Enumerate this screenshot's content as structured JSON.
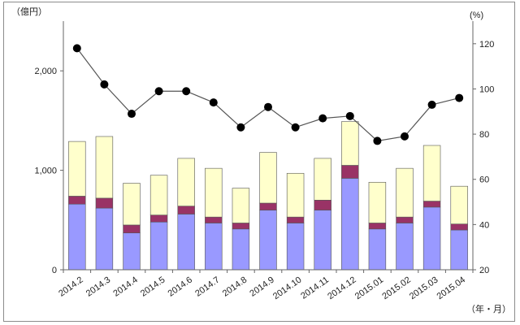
{
  "chart_data": {
    "type": "bar",
    "stacked": true,
    "has_line_series": true,
    "left_axis_unit": "（億円）",
    "right_axis_unit": "(%)",
    "x_axis_unit": "（年・月）",
    "left_ylim": [
      0,
      2500
    ],
    "left_ticks": [
      0,
      1000,
      2000
    ],
    "left_tick_labels": [
      "0",
      "1,000",
      "2,000"
    ],
    "right_ylim": [
      20,
      130
    ],
    "right_ticks": [
      20,
      40,
      60,
      80,
      100,
      120
    ],
    "right_tick_labels": [
      "20",
      "40",
      "60",
      "80",
      "100",
      "120"
    ],
    "grid": false,
    "legend": "none",
    "categories": [
      "2014.2",
      "2014.3",
      "2014.4",
      "2014.5",
      "2014.6",
      "2014.7",
      "2014.8",
      "2014.9",
      "2014.10",
      "2014.11",
      "2014.12",
      "2015.01",
      "2015.02",
      "2015.03",
      "2015.04"
    ],
    "series": [
      {
        "kind": "bar",
        "color": "#9999ff",
        "values": [
          660,
          620,
          370,
          480,
          560,
          470,
          410,
          600,
          470,
          600,
          920,
          410,
          470,
          630,
          400
        ]
      },
      {
        "kind": "bar",
        "color": "#993366",
        "values": [
          80,
          100,
          80,
          70,
          80,
          60,
          60,
          70,
          60,
          100,
          130,
          60,
          60,
          60,
          60
        ]
      },
      {
        "kind": "bar",
        "color": "#ffffcc",
        "values": [
          550,
          620,
          420,
          400,
          480,
          490,
          350,
          510,
          440,
          420,
          440,
          410,
          490,
          560,
          380
        ]
      },
      {
        "kind": "line",
        "axis": "right",
        "color": "#000000",
        "values": [
          118,
          102,
          89,
          99,
          99,
          94,
          83,
          92,
          83,
          87,
          88,
          77,
          79,
          93,
          96
        ]
      }
    ]
  }
}
